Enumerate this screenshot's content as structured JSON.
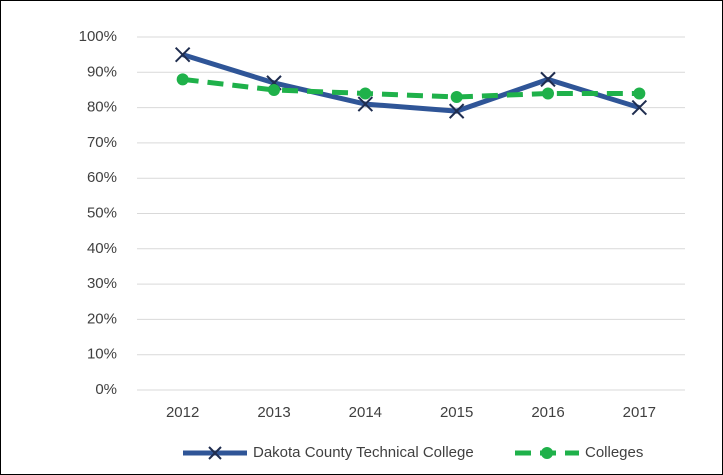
{
  "chart_data": {
    "type": "line",
    "categories": [
      "2012",
      "2013",
      "2014",
      "2015",
      "2016",
      "2017"
    ],
    "series": [
      {
        "name": "Dakota County Technical College",
        "color": "#2f5597",
        "marker": "x",
        "dashed": false,
        "values": [
          95,
          87,
          81,
          79,
          88,
          80
        ]
      },
      {
        "name": "Colleges",
        "color": "#1fb14a",
        "marker": "circle",
        "dashed": true,
        "values": [
          88,
          85,
          84,
          83,
          84,
          84
        ]
      }
    ],
    "ylim": [
      0,
      100
    ],
    "yticks": [
      {
        "value": 0,
        "label": "0%"
      },
      {
        "value": 10,
        "label": "10%"
      },
      {
        "value": 20,
        "label": "20%"
      },
      {
        "value": 30,
        "label": "30%"
      },
      {
        "value": 40,
        "label": "40%"
      },
      {
        "value": 50,
        "label": "50%"
      },
      {
        "value": 60,
        "label": "60%"
      },
      {
        "value": 70,
        "label": "70%"
      },
      {
        "value": 80,
        "label": "80%"
      },
      {
        "value": 90,
        "label": "90%"
      },
      {
        "value": 100,
        "label": "100%"
      }
    ],
    "grid": true,
    "legend": "bottom"
  }
}
